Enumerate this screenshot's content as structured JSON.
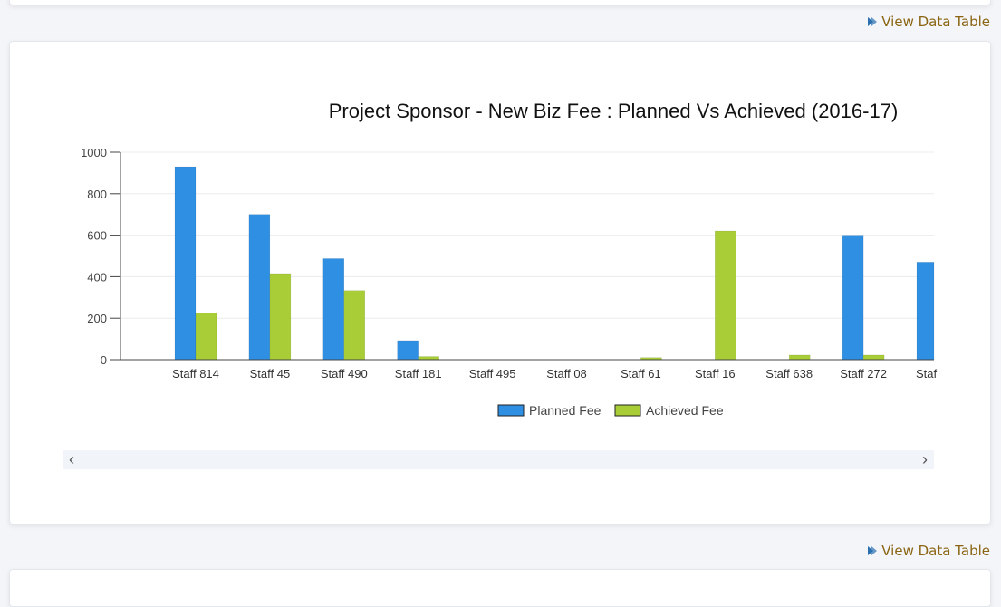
{
  "links": {
    "view_data_table": "View Data Table"
  },
  "colors": {
    "planned": "#2f8fe3",
    "achieved": "#a9cd37",
    "link": "#8a6410"
  },
  "icons": {
    "link_icon": "play-arrow-icon",
    "scroll_left": "chevron-left-icon",
    "scroll_right": "chevron-right-icon"
  },
  "chart_data": {
    "type": "bar",
    "title": "Project Sponsor - New Biz Fee : Planned Vs Achieved (2016-17)",
    "xlabel": "",
    "ylabel": "",
    "ylim": [
      0,
      1000
    ],
    "yticks": [
      0,
      200,
      400,
      600,
      800,
      1000
    ],
    "grid": true,
    "legend": "bottom-center",
    "categories": [
      "Staff 814",
      "Staff 45",
      "Staff 490",
      "Staff 181",
      "Staff 495",
      "Staff 08",
      "Staff 61",
      "Staff 16",
      "Staff 638",
      "Staff 272",
      "Staf"
    ],
    "series": [
      {
        "name": "Planned Fee",
        "values": [
          930,
          700,
          487,
          92,
          0,
          0,
          0,
          0,
          0,
          600,
          470
        ]
      },
      {
        "name": "Achieved Fee",
        "values": [
          225,
          415,
          333,
          15,
          0,
          0,
          10,
          620,
          22,
          22,
          null
        ]
      }
    ]
  }
}
